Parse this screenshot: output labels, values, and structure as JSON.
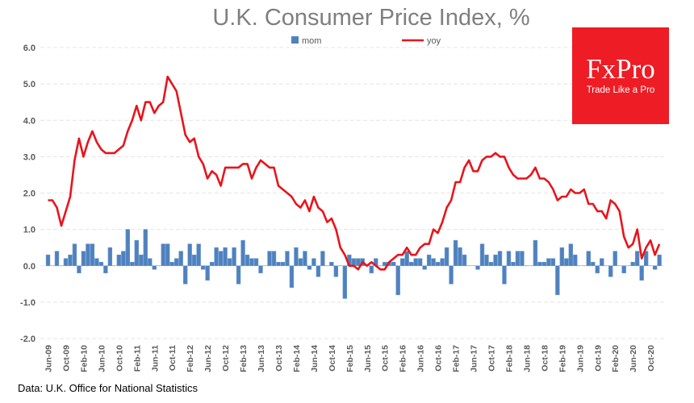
{
  "chart_data": {
    "type": "bar+line",
    "title": "U.K. Consumer Price Index, %",
    "xlabel": "",
    "ylabel": "",
    "ylim": [
      -2.0,
      6.0
    ],
    "yticks": [
      "6.0",
      "5.0",
      "4.0",
      "3.0",
      "2.0",
      "1.0",
      "0.0",
      "-1.0",
      "-2.0"
    ],
    "grid": true,
    "legend": "top-center",
    "categories": [
      "Jun-09",
      "Jul-09",
      "Aug-09",
      "Sep-09",
      "Oct-09",
      "Nov-09",
      "Dec-09",
      "Jan-10",
      "Feb-10",
      "Mar-10",
      "Apr-10",
      "May-10",
      "Jun-10",
      "Jul-10",
      "Aug-10",
      "Sep-10",
      "Oct-10",
      "Nov-10",
      "Dec-10",
      "Jan-11",
      "Feb-11",
      "Mar-11",
      "Apr-11",
      "May-11",
      "Jun-11",
      "Jul-11",
      "Aug-11",
      "Sep-11",
      "Oct-11",
      "Nov-11",
      "Dec-11",
      "Jan-12",
      "Feb-12",
      "Mar-12",
      "Apr-12",
      "May-12",
      "Jun-12",
      "Jul-12",
      "Aug-12",
      "Sep-12",
      "Oct-12",
      "Nov-12",
      "Dec-12",
      "Jan-13",
      "Feb-13",
      "Mar-13",
      "Apr-13",
      "May-13",
      "Jun-13",
      "Jul-13",
      "Aug-13",
      "Sep-13",
      "Oct-13",
      "Nov-13",
      "Dec-13",
      "Jan-14",
      "Feb-14",
      "Mar-14",
      "Apr-14",
      "May-14",
      "Jun-14",
      "Jul-14",
      "Aug-14",
      "Sep-14",
      "Oct-14",
      "Nov-14",
      "Dec-14",
      "Jan-15",
      "Feb-15",
      "Mar-15",
      "Apr-15",
      "May-15",
      "Jun-15",
      "Jul-15",
      "Aug-15",
      "Sep-15",
      "Oct-15",
      "Nov-15",
      "Dec-15",
      "Jan-16",
      "Feb-16",
      "Mar-16",
      "Apr-16",
      "May-16",
      "Jun-16",
      "Jul-16",
      "Aug-16",
      "Sep-16",
      "Oct-16",
      "Nov-16",
      "Dec-16",
      "Jan-17",
      "Feb-17",
      "Mar-17",
      "Apr-17",
      "May-17",
      "Jun-17",
      "Jul-17",
      "Aug-17",
      "Sep-17",
      "Oct-17",
      "Nov-17",
      "Dec-17",
      "Jan-18",
      "Feb-18",
      "Mar-18",
      "Apr-18",
      "May-18",
      "Jun-18",
      "Jul-18",
      "Aug-18",
      "Sep-18",
      "Oct-18",
      "Nov-18",
      "Dec-18",
      "Jan-19",
      "Feb-19",
      "Mar-19",
      "Apr-19",
      "May-19",
      "Jun-19",
      "Jul-19",
      "Aug-19",
      "Sep-19",
      "Oct-19",
      "Nov-19",
      "Dec-19",
      "Jan-20",
      "Feb-20",
      "Mar-20",
      "Apr-20",
      "May-20",
      "Jun-20",
      "Jul-20",
      "Aug-20",
      "Sep-20",
      "Oct-20",
      "Nov-20",
      "Dec-20"
    ],
    "tick_every": 4,
    "series": [
      {
        "name": "mom",
        "type": "bar",
        "color": "#4f81bd",
        "values": [
          0.3,
          0.0,
          0.4,
          0.0,
          0.2,
          0.3,
          0.6,
          -0.2,
          0.4,
          0.6,
          0.6,
          0.2,
          0.1,
          -0.2,
          0.5,
          0.0,
          0.3,
          0.4,
          1.0,
          0.1,
          0.7,
          0.3,
          1.0,
          0.2,
          -0.1,
          0.0,
          0.6,
          0.6,
          0.1,
          0.2,
          0.4,
          -0.5,
          0.6,
          0.3,
          0.6,
          -0.1,
          -0.4,
          0.1,
          0.5,
          0.4,
          0.5,
          0.2,
          0.5,
          -0.5,
          0.7,
          0.3,
          0.2,
          0.2,
          -0.2,
          0.0,
          0.4,
          0.4,
          0.1,
          0.1,
          0.4,
          -0.6,
          0.5,
          0.2,
          0.4,
          -0.1,
          0.2,
          -0.3,
          0.4,
          0.0,
          0.1,
          -0.3,
          0.0,
          -0.9,
          0.3,
          0.2,
          0.2,
          0.2,
          0.0,
          -0.2,
          0.2,
          0.0,
          0.1,
          0.1,
          0.1,
          -0.8,
          0.2,
          0.4,
          0.1,
          0.2,
          0.2,
          -0.1,
          0.3,
          0.2,
          0.1,
          0.2,
          0.5,
          -0.5,
          0.7,
          0.5,
          0.3,
          0.0,
          0.0,
          -0.1,
          0.6,
          0.3,
          0.1,
          0.3,
          0.4,
          -0.5,
          0.4,
          0.1,
          0.4,
          0.4,
          0.0,
          0.0,
          0.7,
          0.1,
          0.1,
          0.2,
          0.2,
          -0.8,
          0.5,
          0.2,
          0.6,
          0.3,
          0.0,
          0.0,
          0.4,
          0.1,
          -0.2,
          0.2,
          0.0,
          -0.3,
          0.4,
          0.0,
          -0.2,
          0.0,
          0.1,
          0.4,
          -0.4,
          0.4,
          0.0,
          -0.1,
          0.3
        ]
      },
      {
        "name": "yoy",
        "type": "line",
        "color": "#e8141c",
        "values": [
          1.8,
          1.8,
          1.6,
          1.1,
          1.5,
          1.9,
          2.9,
          3.5,
          3.0,
          3.4,
          3.7,
          3.4,
          3.2,
          3.1,
          3.1,
          3.1,
          3.2,
          3.3,
          3.7,
          4.0,
          4.4,
          4.0,
          4.5,
          4.5,
          4.2,
          4.4,
          4.5,
          5.2,
          5.0,
          4.8,
          4.2,
          3.6,
          3.4,
          3.5,
          3.0,
          2.8,
          2.4,
          2.6,
          2.5,
          2.2,
          2.7,
          2.7,
          2.7,
          2.7,
          2.8,
          2.8,
          2.4,
          2.7,
          2.9,
          2.8,
          2.7,
          2.7,
          2.2,
          2.1,
          2.0,
          1.9,
          1.7,
          1.6,
          1.8,
          1.5,
          1.9,
          1.6,
          1.5,
          1.2,
          1.3,
          1.0,
          0.5,
          0.3,
          0.0,
          0.0,
          -0.1,
          0.1,
          0.0,
          0.1,
          0.0,
          -0.1,
          -0.1,
          0.1,
          0.2,
          0.3,
          0.3,
          0.5,
          0.3,
          0.3,
          0.5,
          0.6,
          0.6,
          1.0,
          0.9,
          1.2,
          1.6,
          1.8,
          2.3,
          2.3,
          2.7,
          2.9,
          2.6,
          2.6,
          2.9,
          3.0,
          3.0,
          3.1,
          3.0,
          3.0,
          2.7,
          2.5,
          2.4,
          2.4,
          2.4,
          2.5,
          2.7,
          2.4,
          2.4,
          2.3,
          2.1,
          1.8,
          1.9,
          1.9,
          2.1,
          2.0,
          2.0,
          2.1,
          1.7,
          1.7,
          1.5,
          1.5,
          1.3,
          1.8,
          1.7,
          1.5,
          0.8,
          0.5,
          0.6,
          1.0,
          0.2,
          0.5,
          0.7,
          0.3,
          0.6
        ]
      }
    ]
  },
  "logo": {
    "name": "FxPro",
    "tagline": "Trade Like a Pro",
    "color": "#ee1c25"
  },
  "source": "Data: U.K. Office for National Statistics"
}
